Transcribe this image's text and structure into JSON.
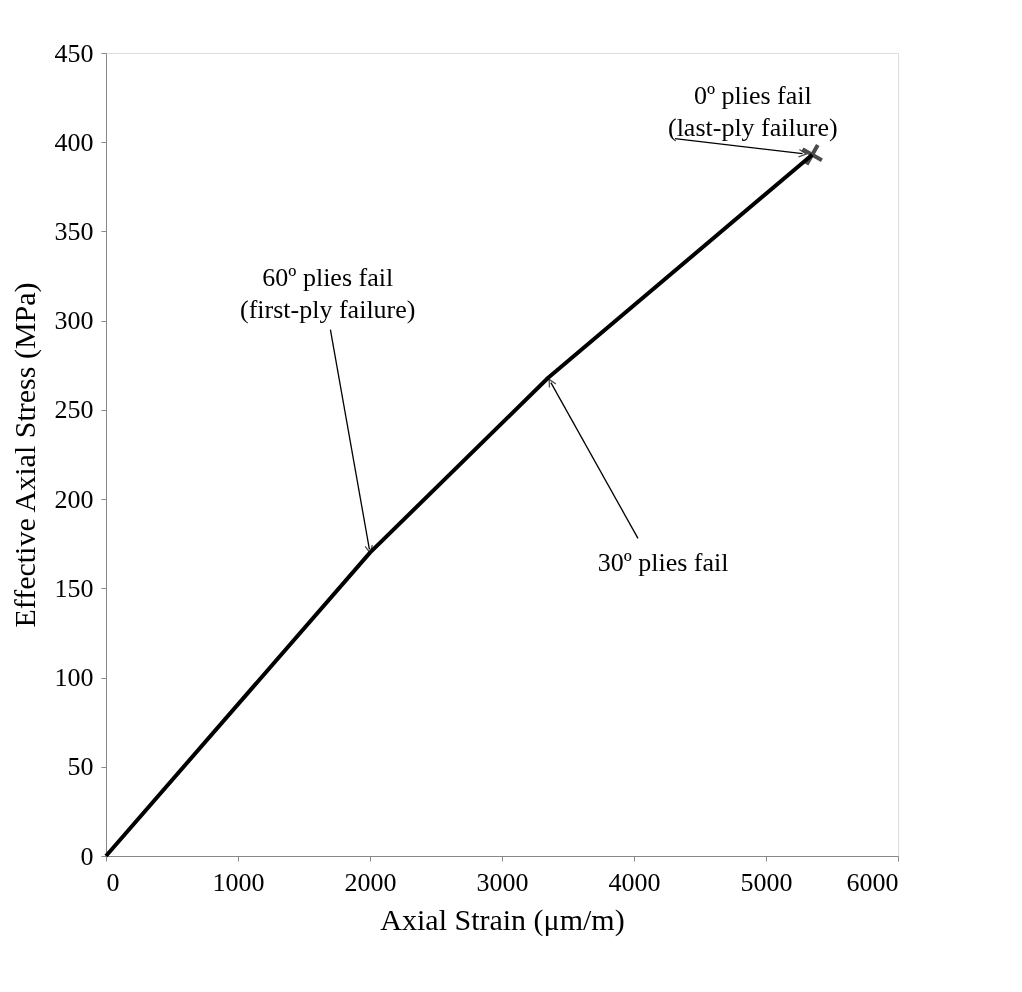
{
  "chart_data": {
    "type": "line",
    "xlabel": "Axial Strain (μm/m)",
    "ylabel": "Effective Axial Stress (MPa)",
    "series": [
      {
        "color": "#000000",
        "x": [
          0,
          2000,
          3350,
          5350
        ],
        "values": [
          0,
          170,
          268,
          393
        ],
        "marker": "none",
        "line_style": "solid"
      },
      {
        "type": "scatter",
        "color": "#000000",
        "x": [
          5350
        ],
        "values": [
          393
        ],
        "marker": "cross"
      }
    ],
    "xlim": [
      0,
      6000
    ],
    "xticks": [
      0,
      1000,
      2000,
      3000,
      4000,
      5000,
      6000
    ],
    "ylim": [
      0,
      450
    ],
    "yticks": [
      0,
      50,
      100,
      150,
      200,
      250,
      300,
      350,
      400,
      450
    ],
    "grid": false,
    "annotations": [
      {
        "text": "0º plies fail\n(last-ply failure)",
        "x": 5350,
        "y": 393
      },
      {
        "text": "60º plies fail\n(first-ply failure)",
        "x": 2000,
        "y": 170
      },
      {
        "text": "30º plies fail",
        "x": 3350,
        "y": 268
      }
    ]
  }
}
